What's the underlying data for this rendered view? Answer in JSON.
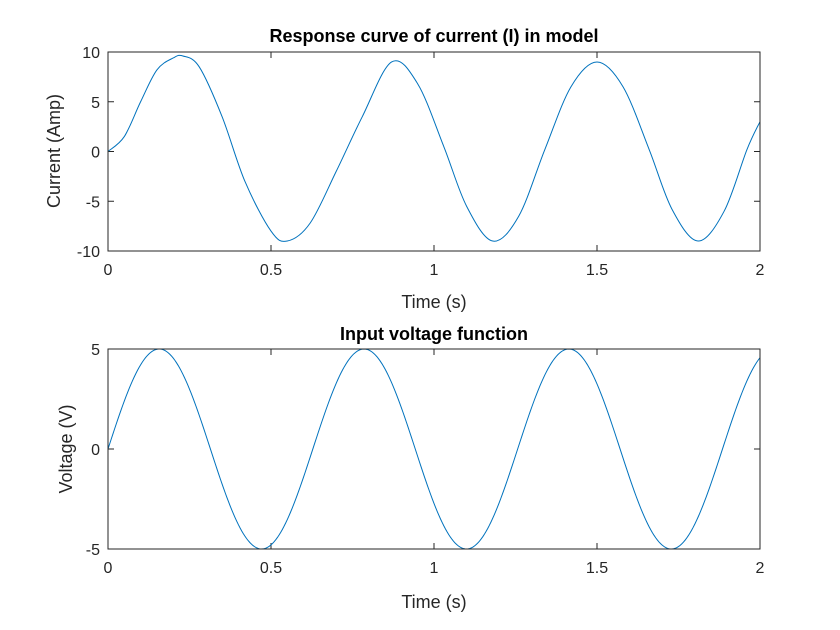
{
  "chart_data": [
    {
      "type": "line",
      "title": "Response curve of current (I) in model",
      "xlabel": "Time (s)",
      "ylabel": "Current (Amp)",
      "xlim": [
        0,
        2
      ],
      "ylim": [
        -10,
        10
      ],
      "xticks": [
        "0",
        "0.5",
        "1",
        "1.5",
        "2"
      ],
      "yticks": [
        "-10",
        "-5",
        "0",
        "5",
        "10"
      ],
      "series": [
        {
          "name": "I",
          "color": "#0072BD",
          "x": [
            0,
            0.05,
            0.1,
            0.15,
            0.2,
            0.23,
            0.28,
            0.35,
            0.42,
            0.5,
            0.55,
            0.62,
            0.7,
            0.78,
            0.87,
            0.95,
            1.03,
            1.1,
            1.18,
            1.26,
            1.34,
            1.42,
            1.5,
            1.58,
            1.66,
            1.73,
            1.81,
            1.89,
            1.96,
            2.0
          ],
          "y": [
            0,
            1.5,
            5.0,
            8.2,
            9.4,
            9.6,
            8.5,
            3.5,
            -3.0,
            -8.0,
            -9.0,
            -7.2,
            -2.0,
            3.5,
            9.0,
            6.8,
            0.5,
            -5.5,
            -9.0,
            -6.5,
            0.2,
            6.5,
            9.0,
            6.5,
            0.2,
            -5.8,
            -9.0,
            -6.0,
            0.2,
            3.0
          ]
        }
      ]
    },
    {
      "type": "line",
      "title": "Input voltage function",
      "xlabel": "Time (s)",
      "ylabel": "Voltage (V)",
      "xlim": [
        0,
        2
      ],
      "ylim": [
        -5,
        5
      ],
      "xticks": [
        "0",
        "0.5",
        "1",
        "1.5",
        "2"
      ],
      "yticks": [
        "-5",
        "0",
        "5"
      ],
      "series": [
        {
          "name": "V",
          "color": "#0072BD",
          "function": "5*sin(10*t)",
          "amplitude": 5,
          "angular_frequency": 10
        }
      ]
    }
  ]
}
